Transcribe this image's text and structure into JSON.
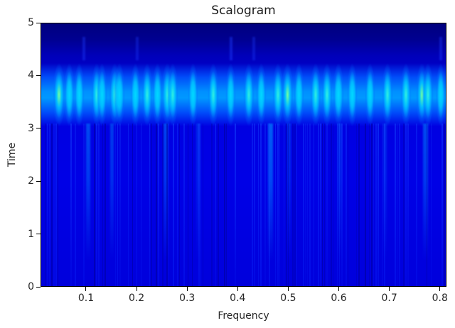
{
  "chart_data": {
    "type": "heatmap",
    "title": "Scalogram",
    "xlabel": "Frequency",
    "ylabel": "Time",
    "xlim": [
      0.01,
      0.813
    ],
    "ylim": [
      0,
      5
    ],
    "x_ticks": [
      0.1,
      0.2,
      0.3,
      0.4,
      0.5,
      0.6,
      0.7,
      0.8
    ],
    "x_tick_labels": [
      "0.1",
      "0.2",
      "0.3",
      "0.4",
      "0.5",
      "0.6",
      "0.7",
      "0.8"
    ],
    "y_ticks": [
      0,
      1,
      2,
      3,
      4,
      5
    ],
    "y_tick_labels": [
      "0",
      "1",
      "2",
      "3",
      "4",
      "5"
    ],
    "grid": false,
    "legend": null,
    "colormap": "jet",
    "colormap_stops": [
      "#00007f",
      "#0000ff",
      "#0080ff",
      "#00e0ff",
      "#60ffa0",
      "#ffff00",
      "#ff0000"
    ],
    "dominant_band": {
      "time_center": 3.65,
      "time_range": [
        3.2,
        4.1
      ],
      "peak_color": "#70ff90"
    },
    "band_peaks": [
      {
        "freq": 0.045,
        "intensity": 0.95
      },
      {
        "freq": 0.066,
        "intensity": 0.6
      },
      {
        "freq": 0.085,
        "intensity": 0.7
      },
      {
        "freq": 0.12,
        "intensity": 0.75
      },
      {
        "freq": 0.13,
        "intensity": 0.65
      },
      {
        "freq": 0.155,
        "intensity": 0.85
      },
      {
        "freq": 0.165,
        "intensity": 0.7
      },
      {
        "freq": 0.196,
        "intensity": 0.6
      },
      {
        "freq": 0.22,
        "intensity": 0.75
      },
      {
        "freq": 0.24,
        "intensity": 0.7
      },
      {
        "freq": 0.26,
        "intensity": 0.85
      },
      {
        "freq": 0.27,
        "intensity": 0.8
      },
      {
        "freq": 0.31,
        "intensity": 0.7
      },
      {
        "freq": 0.35,
        "intensity": 0.8
      },
      {
        "freq": 0.385,
        "intensity": 0.6
      },
      {
        "freq": 0.42,
        "intensity": 0.75
      },
      {
        "freq": 0.445,
        "intensity": 0.7
      },
      {
        "freq": 0.478,
        "intensity": 0.75
      },
      {
        "freq": 0.497,
        "intensity": 0.9
      },
      {
        "freq": 0.52,
        "intensity": 0.7
      },
      {
        "freq": 0.553,
        "intensity": 0.75
      },
      {
        "freq": 0.575,
        "intensity": 0.8
      },
      {
        "freq": 0.598,
        "intensity": 0.7
      },
      {
        "freq": 0.625,
        "intensity": 0.7
      },
      {
        "freq": 0.66,
        "intensity": 0.65
      },
      {
        "freq": 0.695,
        "intensity": 0.75
      },
      {
        "freq": 0.732,
        "intensity": 0.75
      },
      {
        "freq": 0.763,
        "intensity": 0.95
      },
      {
        "freq": 0.775,
        "intensity": 0.8
      },
      {
        "freq": 0.8,
        "intensity": 0.55
      }
    ],
    "secondary_streaks": [
      {
        "freq": 0.103,
        "time_range": [
          0.5,
          3.1
        ],
        "intensity": 0.55
      },
      {
        "freq": 0.15,
        "time_range": [
          0.5,
          3.1
        ],
        "intensity": 0.45
      },
      {
        "freq": 0.256,
        "time_range": [
          0.5,
          3.1
        ],
        "intensity": 0.5
      },
      {
        "freq": 0.32,
        "time_range": [
          0.5,
          3.1
        ],
        "intensity": 0.3
      },
      {
        "freq": 0.463,
        "time_range": [
          0.5,
          3.1
        ],
        "intensity": 0.7
      },
      {
        "freq": 0.5,
        "time_range": [
          0.5,
          3.1
        ],
        "intensity": 0.35
      },
      {
        "freq": 0.6,
        "time_range": [
          0.5,
          3.1
        ],
        "intensity": 0.35
      },
      {
        "freq": 0.69,
        "time_range": [
          0.5,
          3.1
        ],
        "intensity": 0.3
      },
      {
        "freq": 0.77,
        "time_range": [
          0.5,
          3.1
        ],
        "intensity": 0.55
      }
    ],
    "upper_streaks": [
      {
        "freq": 0.095,
        "intensity": 0.4
      },
      {
        "freq": 0.2,
        "intensity": 0.35
      },
      {
        "freq": 0.385,
        "intensity": 0.45
      },
      {
        "freq": 0.43,
        "intensity": 0.35
      },
      {
        "freq": 0.8,
        "intensity": 0.4
      }
    ]
  }
}
